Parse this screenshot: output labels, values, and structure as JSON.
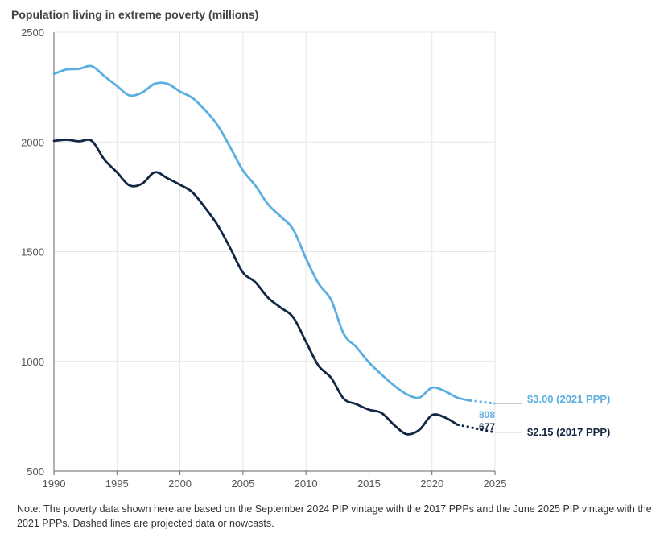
{
  "chart_data": {
    "type": "line",
    "title": "Population living in extreme poverty (millions)",
    "xlabel": "",
    "ylabel": "",
    "xlim": [
      1990,
      2025
    ],
    "ylim": [
      500,
      2500
    ],
    "x_ticks": [
      1990,
      1995,
      2000,
      2005,
      2010,
      2015,
      2020,
      2025
    ],
    "y_ticks": [
      500,
      1000,
      1500,
      2000,
      2500
    ],
    "grid": true,
    "series": [
      {
        "name": "$3.00 (2021 PPP)",
        "color": "#5aaee0",
        "end_label": "808",
        "points": [
          [
            1990,
            2310
          ],
          [
            1991,
            2330
          ],
          [
            1992,
            2333
          ],
          [
            1993,
            2345
          ],
          [
            1994,
            2300
          ],
          [
            1995,
            2255
          ],
          [
            1996,
            2212
          ],
          [
            1997,
            2225
          ],
          [
            1998,
            2265
          ],
          [
            1999,
            2265
          ],
          [
            2000,
            2230
          ],
          [
            2001,
            2200
          ],
          [
            2002,
            2145
          ],
          [
            2003,
            2075
          ],
          [
            2004,
            1975
          ],
          [
            2005,
            1870
          ],
          [
            2006,
            1800
          ],
          [
            2007,
            1715
          ],
          [
            2008,
            1660
          ],
          [
            2009,
            1600
          ],
          [
            2010,
            1470
          ],
          [
            2011,
            1355
          ],
          [
            2012,
            1280
          ],
          [
            2013,
            1125
          ],
          [
            2014,
            1065
          ],
          [
            2015,
            995
          ],
          [
            2016,
            940
          ],
          [
            2017,
            890
          ],
          [
            2018,
            850
          ],
          [
            2019,
            835
          ],
          [
            2020,
            880
          ],
          [
            2021,
            865
          ],
          [
            2022,
            835
          ],
          [
            2023,
            822
          ]
        ],
        "projected": [
          [
            2023,
            822
          ],
          [
            2024,
            815
          ],
          [
            2025,
            808
          ]
        ]
      },
      {
        "name": "$2.15 (2017 PPP)",
        "color": "#122744",
        "end_label": "677",
        "points": [
          [
            1990,
            2005
          ],
          [
            1991,
            2010
          ],
          [
            1992,
            2003
          ],
          [
            1993,
            2005
          ],
          [
            1994,
            1920
          ],
          [
            1995,
            1862
          ],
          [
            1996,
            1802
          ],
          [
            1997,
            1810
          ],
          [
            1998,
            1862
          ],
          [
            1999,
            1835
          ],
          [
            2000,
            1805
          ],
          [
            2001,
            1770
          ],
          [
            2002,
            1700
          ],
          [
            2003,
            1620
          ],
          [
            2004,
            1515
          ],
          [
            2005,
            1405
          ],
          [
            2006,
            1360
          ],
          [
            2007,
            1290
          ],
          [
            2008,
            1245
          ],
          [
            2009,
            1200
          ],
          [
            2010,
            1090
          ],
          [
            2011,
            980
          ],
          [
            2012,
            925
          ],
          [
            2013,
            830
          ],
          [
            2014,
            805
          ],
          [
            2015,
            780
          ],
          [
            2016,
            765
          ],
          [
            2017,
            710
          ],
          [
            2018,
            668
          ],
          [
            2019,
            688
          ],
          [
            2020,
            755
          ],
          [
            2021,
            745
          ],
          [
            2022,
            712
          ]
        ],
        "projected": [
          [
            2022,
            712
          ],
          [
            2023,
            700
          ],
          [
            2024,
            688
          ],
          [
            2025,
            677
          ]
        ]
      }
    ]
  },
  "note": "Note: The poverty data shown here are based on the September 2024 PIP vintage with the 2017 PPPs and the June 2025 PIP vintage with the 2021 PPPs. Dashed lines are projected data or nowcasts."
}
